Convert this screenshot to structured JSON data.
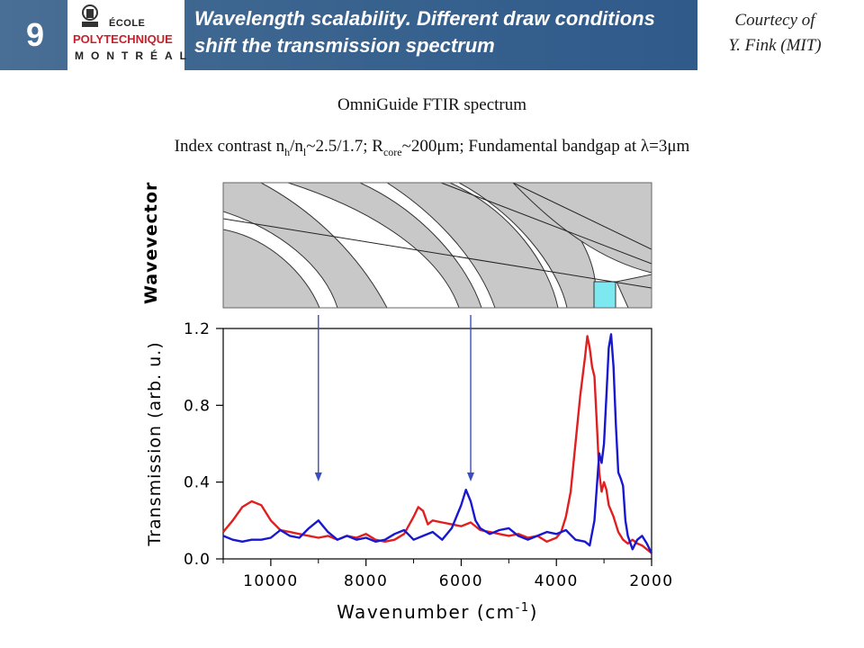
{
  "header": {
    "slide_number": "9",
    "title": "Wavelength scalability. Different draw conditions shift the transmission spectrum",
    "logo": {
      "line1": "ÉCOLE",
      "line2": "POLYTECHNIQUE",
      "line3": "MONTRÉAL"
    },
    "courtesy_line1": "Courtecy of",
    "courtesy_line2": "Y. Fink (MIT)",
    "colors": {
      "header_bar": "#3d6690",
      "logo_red": "#c8202a"
    }
  },
  "captions": {
    "line1": "OmniGuide FTIR spectrum",
    "line2_parts": {
      "a": "Index contrast n",
      "h": "h",
      "b": "/n",
      "l": "l",
      "c": "~2.5/1.7; R",
      "core": "core",
      "d": "~200μm; Fundamental bandgap at λ=3μm"
    }
  },
  "band_diagram": {
    "ylabel": "Wavevector",
    "highlight_color": "#7ee8f0"
  },
  "chart_data": {
    "type": "line",
    "title": "",
    "xlabel": "Wavenumber (cm",
    "xlabel_sup": "-1",
    "xlabel_end": ")",
    "ylabel": "Transmission (arb. u.)",
    "xlim": [
      11000,
      2000
    ],
    "ylim": [
      0,
      1.2
    ],
    "x_ticks": [
      10000,
      8000,
      6000,
      4000,
      2000
    ],
    "x_tick_labels": [
      "10000",
      "8000",
      "6000",
      "4000",
      "2000"
    ],
    "y_ticks": [
      0,
      0.4,
      0.8,
      1.2
    ],
    "y_tick_labels": [
      "0.0",
      "0.4",
      "0.8",
      "1.2"
    ],
    "grid": false,
    "series": [
      {
        "color": "#e02020",
        "x": [
          11000,
          10800,
          10600,
          10400,
          10200,
          10000,
          9800,
          9600,
          9400,
          9200,
          9000,
          8800,
          8600,
          8400,
          8200,
          8000,
          7800,
          7600,
          7400,
          7200,
          7000,
          6900,
          6800,
          6700,
          6600,
          6400,
          6200,
          6000,
          5800,
          5600,
          5400,
          5200,
          5000,
          4800,
          4600,
          4400,
          4200,
          4000,
          3900,
          3800,
          3700,
          3600,
          3500,
          3400,
          3350,
          3300,
          3250,
          3200,
          3150,
          3100,
          3050,
          3000,
          2950,
          2900,
          2800,
          2700,
          2600,
          2500,
          2400,
          2300,
          2200,
          2100,
          2000
        ],
        "y": [
          0.14,
          0.2,
          0.27,
          0.3,
          0.28,
          0.2,
          0.15,
          0.14,
          0.13,
          0.12,
          0.11,
          0.12,
          0.1,
          0.12,
          0.11,
          0.13,
          0.1,
          0.09,
          0.1,
          0.13,
          0.22,
          0.27,
          0.25,
          0.18,
          0.2,
          0.19,
          0.18,
          0.17,
          0.19,
          0.15,
          0.14,
          0.13,
          0.12,
          0.13,
          0.11,
          0.12,
          0.09,
          0.11,
          0.14,
          0.22,
          0.35,
          0.6,
          0.85,
          1.05,
          1.16,
          1.1,
          1.0,
          0.95,
          0.7,
          0.45,
          0.35,
          0.4,
          0.36,
          0.28,
          0.22,
          0.14,
          0.1,
          0.08,
          0.1,
          0.08,
          0.07,
          0.05,
          0.03
        ]
      },
      {
        "color": "#1818d0",
        "x": [
          11000,
          10800,
          10600,
          10400,
          10200,
          10000,
          9800,
          9600,
          9400,
          9200,
          9000,
          8800,
          8600,
          8400,
          8200,
          8000,
          7800,
          7600,
          7400,
          7200,
          7000,
          6800,
          6600,
          6400,
          6200,
          6000,
          5900,
          5800,
          5700,
          5600,
          5400,
          5200,
          5000,
          4800,
          4600,
          4400,
          4200,
          4000,
          3800,
          3600,
          3400,
          3300,
          3200,
          3100,
          3050,
          3000,
          2950,
          2900,
          2850,
          2800,
          2750,
          2700,
          2650,
          2600,
          2550,
          2500,
          2400,
          2300,
          2200,
          2100,
          2000
        ],
        "y": [
          0.12,
          0.1,
          0.09,
          0.1,
          0.1,
          0.11,
          0.15,
          0.12,
          0.11,
          0.16,
          0.2,
          0.14,
          0.1,
          0.12,
          0.1,
          0.11,
          0.09,
          0.1,
          0.13,
          0.15,
          0.1,
          0.12,
          0.14,
          0.1,
          0.16,
          0.28,
          0.36,
          0.3,
          0.2,
          0.16,
          0.13,
          0.15,
          0.16,
          0.12,
          0.1,
          0.12,
          0.14,
          0.13,
          0.15,
          0.1,
          0.09,
          0.07,
          0.2,
          0.55,
          0.5,
          0.6,
          0.85,
          1.1,
          1.17,
          1.0,
          0.7,
          0.45,
          0.42,
          0.38,
          0.2,
          0.12,
          0.05,
          0.1,
          0.12,
          0.08,
          0.03
        ]
      }
    ],
    "arrows_at_x": [
      9000,
      5800
    ],
    "arrow_color": "#3a4fbf"
  }
}
